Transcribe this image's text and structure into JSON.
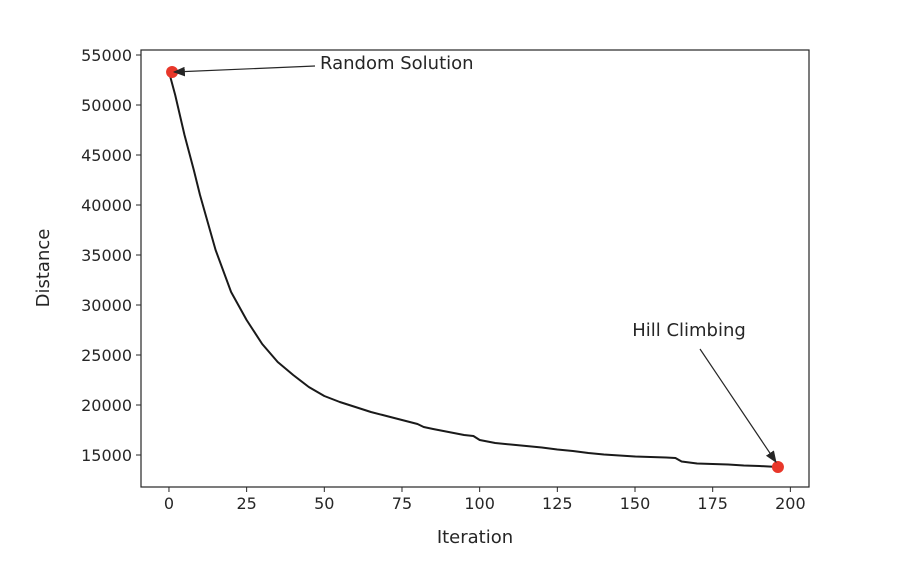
{
  "chart_data": {
    "type": "line",
    "title": "",
    "xlabel": "Iteration",
    "ylabel": "Distance",
    "xlim": [
      -9,
      206
    ],
    "ylim": [
      11800,
      55500
    ],
    "xticks": [
      0,
      25,
      50,
      75,
      100,
      125,
      150,
      175,
      200
    ],
    "yticks": [
      15000,
      20000,
      25000,
      30000,
      35000,
      40000,
      45000,
      50000,
      55000
    ],
    "grid": false,
    "series": [
      {
        "color": "#1a1a1a",
        "x": [
          0,
          2,
          5,
          8,
          10,
          15,
          20,
          25,
          30,
          35,
          40,
          45,
          50,
          55,
          60,
          65,
          70,
          75,
          80,
          82,
          85,
          90,
          95,
          98,
          100,
          105,
          110,
          115,
          120,
          125,
          130,
          135,
          140,
          145,
          150,
          155,
          160,
          163,
          165,
          170,
          175,
          180,
          185,
          190,
          196
        ],
        "y": [
          53300,
          51000,
          47000,
          43500,
          41000,
          35500,
          31300,
          28500,
          26100,
          24300,
          23000,
          21800,
          20900,
          20300,
          19800,
          19300,
          18900,
          18500,
          18100,
          17800,
          17600,
          17300,
          17000,
          16900,
          16500,
          16200,
          16050,
          15900,
          15750,
          15550,
          15400,
          15200,
          15050,
          14950,
          14850,
          14800,
          14750,
          14700,
          14350,
          14150,
          14100,
          14050,
          13950,
          13900,
          13800
        ]
      }
    ],
    "points": [
      {
        "x": 1,
        "y": 53300,
        "color": "#e8372a"
      },
      {
        "x": 196,
        "y": 13800,
        "color": "#e8372a"
      }
    ],
    "annotations": [
      {
        "text": "Random Solution",
        "x": 1,
        "y": 53300
      },
      {
        "text": "Hill Climbing",
        "x": 196,
        "y": 13800
      }
    ]
  }
}
